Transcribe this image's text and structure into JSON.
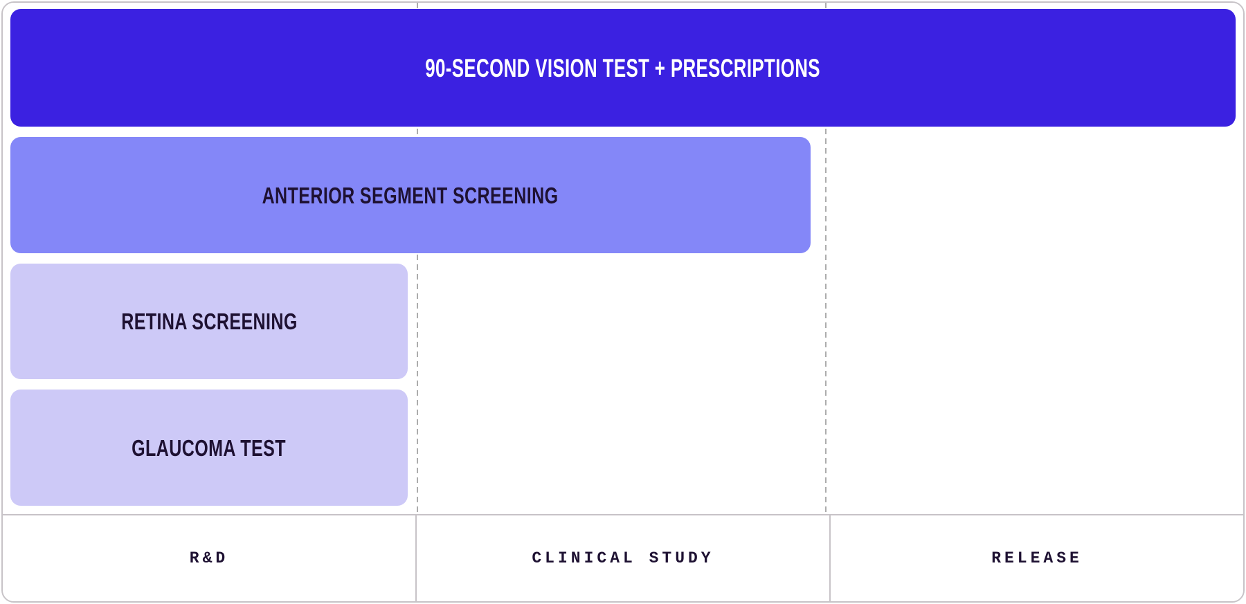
{
  "roadmap": {
    "bars": [
      {
        "label": "90-SECOND VISION TEST + PRESCRIPTIONS",
        "color": "#3b21e1",
        "text_color": "#ffffff"
      },
      {
        "label": "ANTERIOR SEGMENT SCREENING",
        "color": "#8487f8",
        "text_color": "#1e1132"
      },
      {
        "label": "RETINA SCREENING",
        "color": "#cdc9f7",
        "text_color": "#1e1132"
      },
      {
        "label": "GLAUCOMA TEST",
        "color": "#cdc9f7",
        "text_color": "#1e1132"
      }
    ],
    "phases": [
      {
        "label": "R&D"
      },
      {
        "label": "CLINICAL STUDY"
      },
      {
        "label": "RELEASE"
      }
    ],
    "divider_color": "#acacac",
    "border_color": "#c7c3c7"
  },
  "chart_data": {
    "type": "bar",
    "subtype": "gantt-roadmap",
    "orientation": "horizontal",
    "title": "",
    "categories": [
      "90-Second Vision Test + Prescriptions",
      "Anterior Segment Screening",
      "Retina Screening",
      "Glaucoma Test"
    ],
    "series": [
      {
        "name": "development-span",
        "start_phase": [
          0,
          0,
          0,
          0
        ],
        "end_phase": [
          3.0,
          1.95,
          0.96,
          0.96
        ]
      }
    ],
    "x_axis": {
      "phases": [
        "R&D",
        "Clinical Study",
        "Release"
      ],
      "range": [
        0,
        3
      ],
      "gridlines": "dashed-vertical",
      "labels_position": "bottom"
    },
    "colors": [
      "#3b21e1",
      "#8487f8",
      "#cdc9f7",
      "#cdc9f7"
    ],
    "legend": "none"
  }
}
